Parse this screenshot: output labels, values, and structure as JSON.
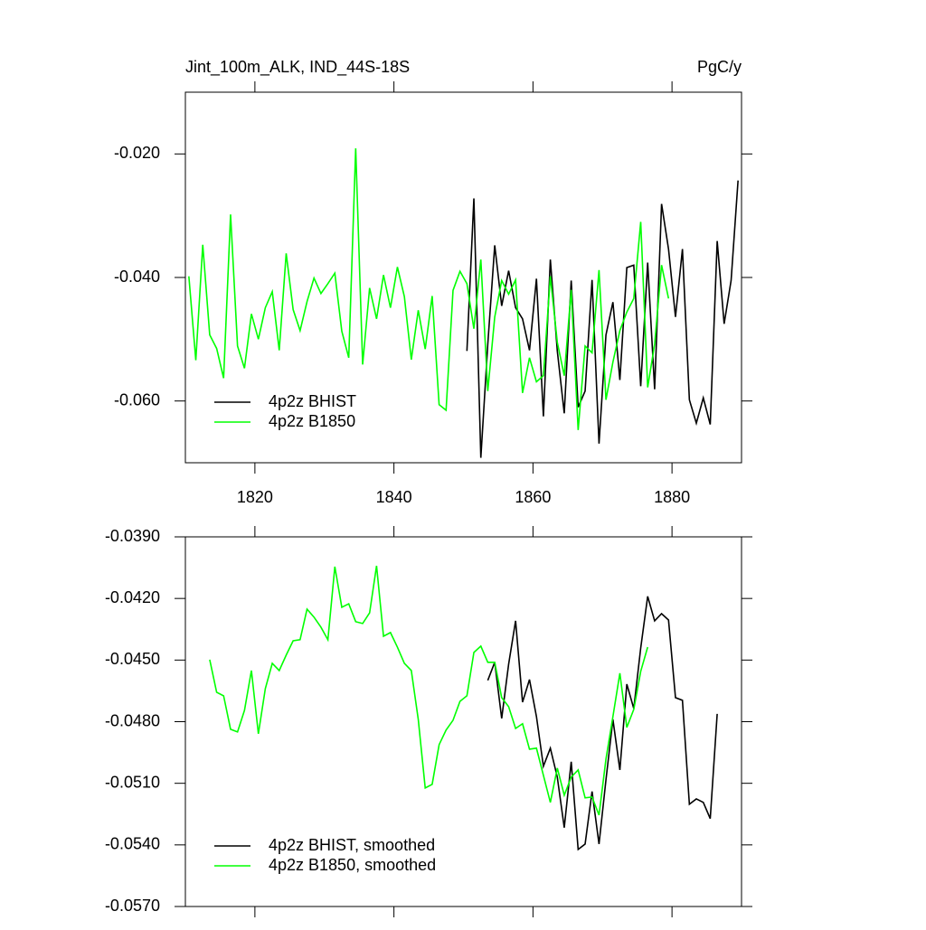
{
  "chart_data": [
    {
      "type": "line",
      "title": "Jint_100m_ALK, IND_44S-18S",
      "units": "PgC/y",
      "xlim": [
        1810,
        1890
      ],
      "xticks": [
        1820,
        1840,
        1860,
        1880
      ],
      "xticklabels": true,
      "ylim": [
        -0.07,
        -0.01
      ],
      "yticks": [
        {
          "value": -0.02,
          "label": "-0.020"
        },
        {
          "value": -0.04,
          "label": "-0.040"
        },
        {
          "value": -0.06,
          "label": "-0.060"
        }
      ],
      "legend": "lower left",
      "series": [
        {
          "name": "4p2z BHIST",
          "color": "#000000",
          "x": [
            1850.5,
            1851.5,
            1852.5,
            1853.5,
            1854.5,
            1855.5,
            1856.5,
            1857.5,
            1858.5,
            1859.5,
            1860.5,
            1861.5,
            1862.5,
            1863.5,
            1864.5,
            1865.5,
            1866.5,
            1867.5,
            1868.5,
            1869.5,
            1870.5,
            1871.5,
            1872.5,
            1873.5,
            1874.5,
            1875.5,
            1876.5,
            1877.5,
            1878.5,
            1879.5,
            1880.5,
            1881.5,
            1882.5,
            1883.5,
            1884.5,
            1885.5,
            1886.5,
            1887.5,
            1888.5,
            1889.5
          ],
          "values": [
            -0.0519,
            -0.0272,
            -0.0692,
            -0.0508,
            -0.0348,
            -0.0446,
            -0.0389,
            -0.0449,
            -0.0467,
            -0.0518,
            -0.0402,
            -0.0625,
            -0.0371,
            -0.0519,
            -0.062,
            -0.0405,
            -0.061,
            -0.0584,
            -0.0404,
            -0.0669,
            -0.0493,
            -0.044,
            -0.0566,
            -0.0384,
            -0.038,
            -0.0576,
            -0.0376,
            -0.0581,
            -0.0281,
            -0.0354,
            -0.0464,
            -0.0354,
            -0.0598,
            -0.0636,
            -0.0595,
            -0.0638,
            -0.0341,
            -0.0475,
            -0.0405,
            -0.0243
          ]
        },
        {
          "name": "4p2z B1850",
          "color": "#00ff00",
          "x": [
            1810.5,
            1811.5,
            1812.5,
            1813.5,
            1814.5,
            1815.5,
            1816.5,
            1817.5,
            1818.5,
            1819.5,
            1820.5,
            1821.5,
            1822.5,
            1823.5,
            1824.5,
            1825.5,
            1826.5,
            1827.5,
            1828.5,
            1829.5,
            1830.5,
            1831.5,
            1832.5,
            1833.5,
            1834.5,
            1835.5,
            1836.5,
            1837.5,
            1838.5,
            1839.5,
            1840.5,
            1841.5,
            1842.5,
            1843.5,
            1844.5,
            1845.5,
            1846.5,
            1847.5,
            1848.5,
            1849.5,
            1850.5,
            1851.5,
            1852.5,
            1853.5,
            1854.5,
            1855.5,
            1856.5,
            1857.5,
            1858.5,
            1859.5,
            1860.5,
            1861.5,
            1862.5,
            1863.5,
            1864.5,
            1865.5,
            1866.5,
            1867.5,
            1868.5,
            1869.5,
            1870.5,
            1871.5,
            1872.5,
            1873.5,
            1874.5,
            1875.5,
            1876.5,
            1877.5,
            1878.5,
            1879.5
          ],
          "values": [
            -0.0398,
            -0.0534,
            -0.0347,
            -0.0493,
            -0.0515,
            -0.0563,
            -0.0298,
            -0.0511,
            -0.0547,
            -0.0459,
            -0.05,
            -0.0449,
            -0.0423,
            -0.0518,
            -0.0361,
            -0.0452,
            -0.0486,
            -0.0439,
            -0.0401,
            -0.0426,
            -0.041,
            -0.0393,
            -0.0487,
            -0.053,
            -0.0191,
            -0.0541,
            -0.0417,
            -0.0467,
            -0.0396,
            -0.0449,
            -0.0383,
            -0.0431,
            -0.0533,
            -0.0453,
            -0.0516,
            -0.043,
            -0.0606,
            -0.0615,
            -0.0421,
            -0.039,
            -0.041,
            -0.0483,
            -0.0371,
            -0.0584,
            -0.0464,
            -0.0405,
            -0.0427,
            -0.0404,
            -0.0587,
            -0.053,
            -0.0569,
            -0.0559,
            -0.0398,
            -0.0505,
            -0.0559,
            -0.042,
            -0.0647,
            -0.0511,
            -0.0522,
            -0.0388,
            -0.0598,
            -0.0537,
            -0.0486,
            -0.0456,
            -0.0434,
            -0.031,
            -0.0578,
            -0.0508,
            -0.038,
            -0.0434
          ]
        }
      ]
    },
    {
      "type": "line",
      "xlim": [
        1810,
        1890
      ],
      "xticks": [
        1820,
        1840,
        1860,
        1880
      ],
      "xticklabels": false,
      "ylim": [
        -0.057,
        -0.039
      ],
      "yticks": [
        {
          "value": -0.039,
          "label": "-0.0390"
        },
        {
          "value": -0.042,
          "label": "-0.0420"
        },
        {
          "value": -0.045,
          "label": "-0.0450"
        },
        {
          "value": -0.048,
          "label": "-0.0480"
        },
        {
          "value": -0.051,
          "label": "-0.0510"
        },
        {
          "value": -0.054,
          "label": "-0.0540"
        },
        {
          "value": -0.057,
          "label": "-0.0570"
        }
      ],
      "legend": "lower left",
      "series": [
        {
          "name": "4p2z BHIST, smoothed",
          "color": "#000000",
          "x": [
            1853.5,
            1854.5,
            1855.5,
            1856.5,
            1857.5,
            1858.5,
            1859.5,
            1860.5,
            1861.5,
            1862.5,
            1863.5,
            1864.5,
            1865.5,
            1866.5,
            1867.5,
            1868.5,
            1869.5,
            1870.5,
            1871.5,
            1872.5,
            1873.5,
            1874.5,
            1875.5,
            1876.5,
            1877.5,
            1878.5,
            1879.5,
            1880.5,
            1881.5,
            1882.5,
            1883.5,
            1884.5,
            1885.5,
            1886.5
          ],
          "values": [
            -0.04599,
            -0.04511,
            -0.04784,
            -0.0452,
            -0.04309,
            -0.04705,
            -0.04595,
            -0.04775,
            -0.05017,
            -0.04929,
            -0.0507,
            -0.05316,
            -0.04995,
            -0.05422,
            -0.05396,
            -0.0514,
            -0.05396,
            -0.05083,
            -0.04789,
            -0.05035,
            -0.04617,
            -0.04736,
            -0.04441,
            -0.0419,
            -0.04309,
            -0.04274,
            -0.04305,
            -0.04683,
            -0.04696,
            -0.05202,
            -0.05176,
            -0.05193,
            -0.05272,
            -0.04762
          ]
        },
        {
          "name": "4p2z B1850, smoothed",
          "color": "#00ff00",
          "x": [
            1813.5,
            1814.5,
            1815.5,
            1816.5,
            1817.5,
            1818.5,
            1819.5,
            1820.5,
            1821.5,
            1822.5,
            1823.5,
            1824.5,
            1825.5,
            1826.5,
            1827.5,
            1828.5,
            1829.5,
            1830.5,
            1831.5,
            1832.5,
            1833.5,
            1834.5,
            1835.5,
            1836.5,
            1837.5,
            1838.5,
            1839.5,
            1840.5,
            1841.5,
            1842.5,
            1843.5,
            1844.5,
            1845.5,
            1846.5,
            1847.5,
            1848.5,
            1849.5,
            1850.5,
            1851.5,
            1852.5,
            1853.5,
            1854.5,
            1855.5,
            1856.5,
            1857.5,
            1858.5,
            1859.5,
            1860.5,
            1861.5,
            1862.5,
            1863.5,
            1864.5,
            1865.5,
            1866.5,
            1867.5,
            1868.5,
            1869.5,
            1870.5,
            1871.5,
            1872.5,
            1873.5,
            1874.5,
            1875.5,
            1876.5
          ],
          "values": [
            -0.04498,
            -0.04657,
            -0.04674,
            -0.04837,
            -0.0485,
            -0.04745,
            -0.04551,
            -0.04859,
            -0.04639,
            -0.04516,
            -0.04551,
            -0.04476,
            -0.04406,
            -0.04401,
            -0.04252,
            -0.04291,
            -0.0434,
            -0.04401,
            -0.04045,
            -0.04243,
            -0.04226,
            -0.04313,
            -0.04322,
            -0.0427,
            -0.04041,
            -0.04384,
            -0.04366,
            -0.04437,
            -0.04516,
            -0.04551,
            -0.04789,
            -0.05123,
            -0.05105,
            -0.04912,
            -0.04841,
            -0.04793,
            -0.04701,
            -0.04674,
            -0.04463,
            -0.04432,
            -0.04511,
            -0.04511,
            -0.04683,
            -0.04727,
            -0.04833,
            -0.0481,
            -0.04934,
            -0.04929,
            -0.05061,
            -0.05193,
            -0.05026,
            -0.05158,
            -0.0507,
            -0.05035,
            -0.05171,
            -0.05167,
            -0.05255,
            -0.04982,
            -0.04775,
            -0.04564,
            -0.04828,
            -0.0474,
            -0.04555,
            -0.04437
          ]
        }
      ]
    }
  ]
}
